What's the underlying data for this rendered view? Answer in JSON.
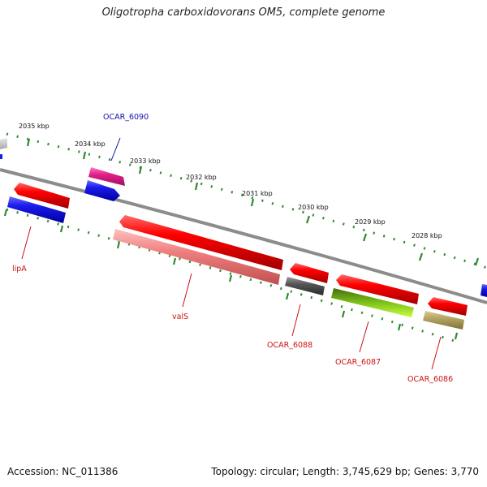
{
  "title": "Oligotropha carboxidovorans OM5, complete genome",
  "footer": {
    "accession": "Accession: NC_011386",
    "summary": "Topology: circular; Length: 3,745,629 bp; Genes: 3,770"
  },
  "colors": {
    "backbone": "#8c8c8c",
    "tick": "#2e8b2e",
    "label_red": "#cc1111",
    "label_blue": "#1111aa"
  },
  "kbp_labels": [
    "2035 kbp",
    "2034 kbp",
    "2033 kbp",
    "2032 kbp",
    "2031 kbp",
    "2030 kbp",
    "2029 kbp",
    "2028 kbp"
  ],
  "genes": [
    {
      "name": "lipA",
      "label": "lipA",
      "color": "#2222dd",
      "label_color": "#cc1111"
    },
    {
      "name": "valS",
      "label": "valS",
      "color": "#f08080",
      "label_color": "#cc1111"
    },
    {
      "name": "OCAR_6088",
      "label": "OCAR_6088",
      "color": "#555555",
      "label_color": "#cc1111"
    },
    {
      "name": "OCAR_6087",
      "label": "OCAR_6087",
      "color": "#88dd22",
      "label_color": "#cc1111"
    },
    {
      "name": "OCAR_6086",
      "label": "OCAR_6086",
      "color": "#b0a060",
      "label_color": "#cc1111"
    },
    {
      "name": "OCAR_6090",
      "label": "OCAR_6090",
      "color": "#e0208a",
      "label_color": "#1111aa"
    }
  ]
}
